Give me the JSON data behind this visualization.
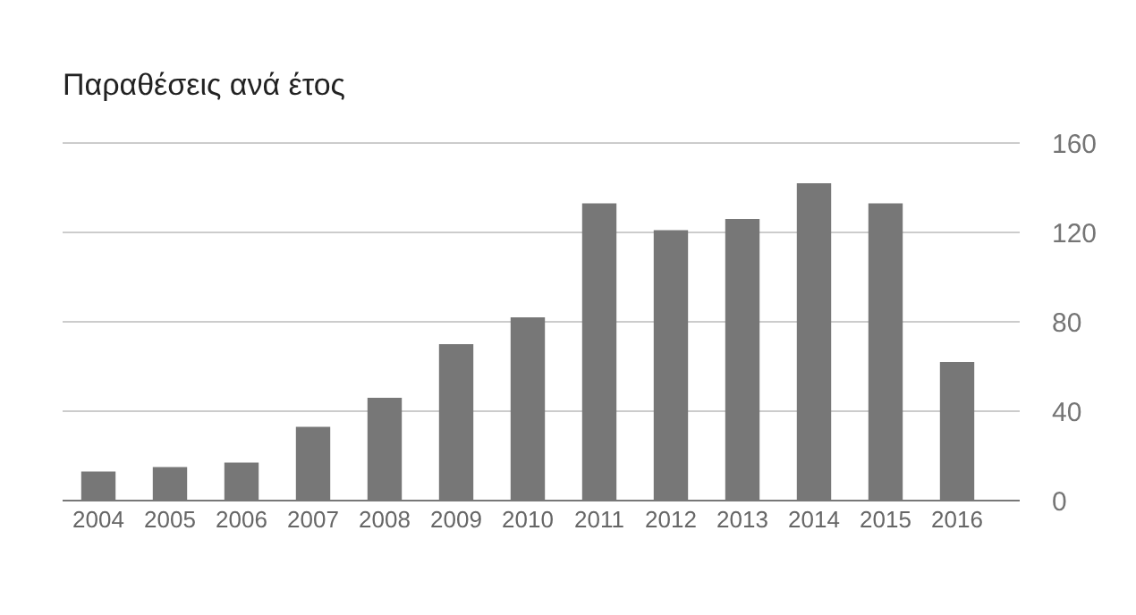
{
  "chart_data": {
    "type": "bar",
    "title": "Παραθέσεις ανά έτος",
    "categories": [
      "2004",
      "2005",
      "2006",
      "2007",
      "2008",
      "2009",
      "2010",
      "2011",
      "2012",
      "2013",
      "2014",
      "2015",
      "2016"
    ],
    "values": [
      13,
      15,
      17,
      33,
      46,
      70,
      82,
      133,
      121,
      126,
      142,
      133,
      62
    ],
    "color": "#777777",
    "ylim": [
      0,
      160
    ],
    "yticks": [
      0,
      40,
      80,
      120,
      160
    ],
    "grid": "y"
  }
}
